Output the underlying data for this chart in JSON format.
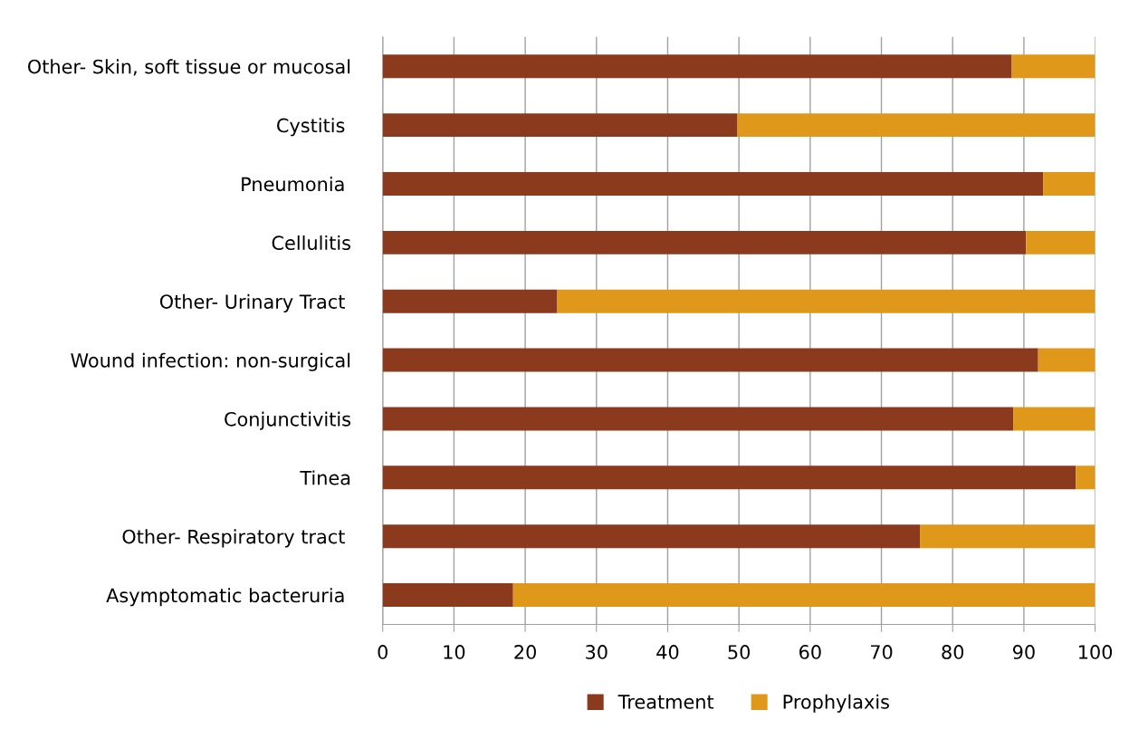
{
  "chart_data": {
    "type": "bar",
    "orientation": "horizontal",
    "stacked": true,
    "categories": [
      "Other- Skin, soft tissue or mucosal",
      "Cystitis ",
      "Pneumonia ",
      "Cellulitis",
      "Other- Urinary Tract ",
      "Wound infection: non-surgical",
      "Conjunctivitis",
      "Tinea",
      "Other- Respiratory tract ",
      "Asymptomatic bacteruria "
    ],
    "series": [
      {
        "name": "Treatment",
        "color": "#8b3a1e",
        "values": [
          88.3,
          49.8,
          92.7,
          90.3,
          24.5,
          92.0,
          88.5,
          97.3,
          75.4,
          18.3
        ]
      },
      {
        "name": "Prophylaxis",
        "color": "#e0981a",
        "values": [
          11.7,
          50.2,
          7.3,
          9.7,
          75.5,
          8.0,
          11.5,
          2.7,
          24.6,
          81.7
        ]
      }
    ],
    "xlim": [
      0,
      100
    ],
    "xticks": [
      0,
      10,
      20,
      30,
      40,
      50,
      60,
      70,
      80,
      90,
      100
    ],
    "grid": "x",
    "legend": "bottom"
  }
}
